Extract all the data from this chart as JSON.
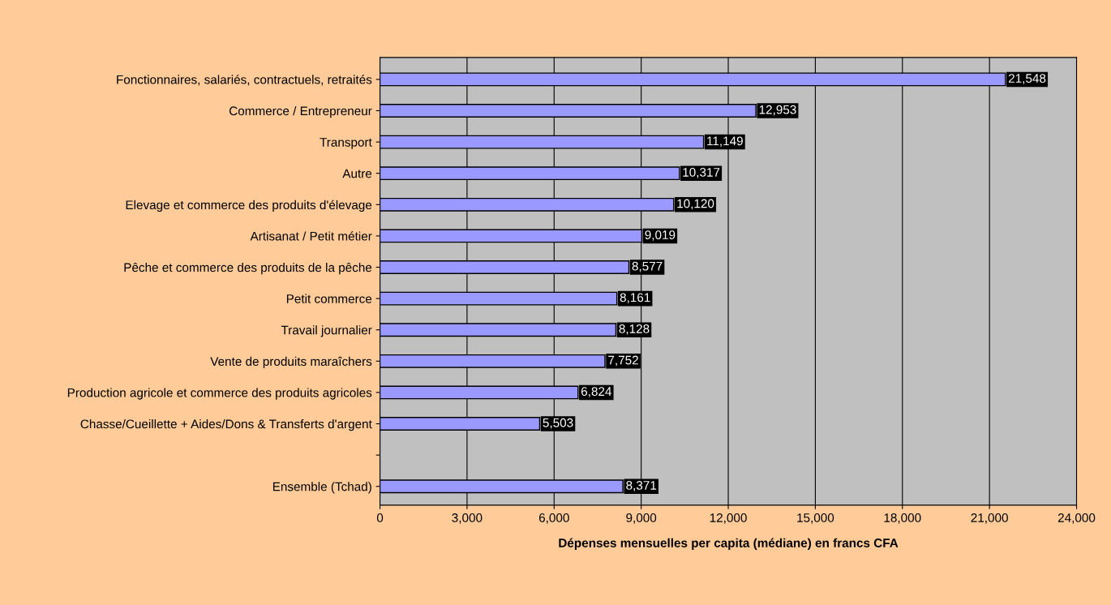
{
  "chart_data": {
    "type": "bar",
    "orientation": "horizontal",
    "xlabel": "Dépenses mensuelles per capita (médiane) en francs CFA",
    "categories": [
      "Fonctionnaires, salariés, contractuels, retraités",
      "Commerce / Entrepreneur",
      "Transport",
      "Autre",
      "Elevage et commerce des produits d'élevage",
      "Artisanat / Petit métier",
      "Pêche et commerce des produits de la pêche",
      "Petit commerce",
      "Travail journalier",
      "Vente de produits maraîchers",
      "Production agricole et commerce des produits agricoles",
      "Chasse/Cueillette + Aides/Dons & Transferts d'argent",
      null,
      "Ensemble (Tchad)"
    ],
    "values": [
      21548,
      12953,
      11149,
      10317,
      10120,
      9019,
      8577,
      8161,
      8128,
      7752,
      6824,
      5503,
      null,
      8371
    ],
    "value_labels": [
      "21,548",
      "12,953",
      "11,149",
      "10,317",
      "10,120",
      "9,019",
      "8,577",
      "8,161",
      "8,128",
      "7,752",
      "6,824",
      "5,503",
      null,
      "8,371"
    ],
    "color": "#9999ff",
    "xlim": [
      0,
      24000
    ],
    "xticks": [
      0,
      {
        "value": 3000,
        "label": "3,000"
      },
      {
        "value": 6000,
        "label": "6,000"
      },
      {
        "value": 9000,
        "label": "9,000"
      },
      {
        "value": 12000,
        "label": "12,000"
      },
      {
        "value": 15000,
        "label": "15,000"
      },
      {
        "value": 18000,
        "label": "18,000"
      },
      {
        "value": 21000,
        "label": "21,000"
      },
      {
        "value": 24000,
        "label": "24,000"
      }
    ],
    "grid": "x",
    "legend": false
  }
}
